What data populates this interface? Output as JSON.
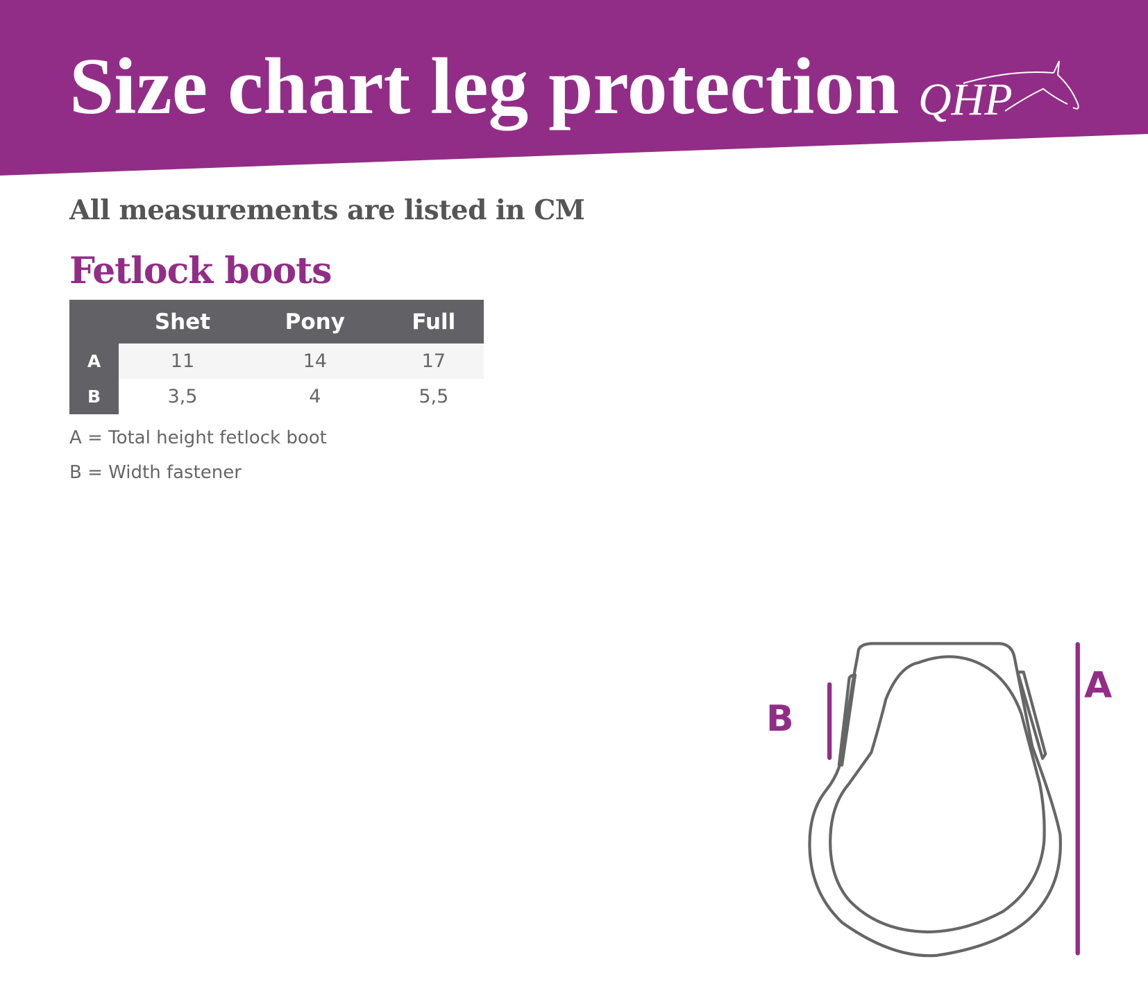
{
  "header": {
    "title": "Size chart leg protection",
    "logo_text": "QHP",
    "background": "#922d87"
  },
  "subtitle": "All measurements are listed in CM",
  "section_title": "Fetlock boots",
  "table": {
    "columns": [
      "",
      "Shet",
      "Pony",
      "Full"
    ],
    "rows": [
      {
        "label": "A",
        "values": [
          "11",
          "14",
          "17"
        ]
      },
      {
        "label": "B",
        "values": [
          "3,5",
          "4",
          "5,5"
        ]
      }
    ]
  },
  "legend": [
    "A = Total height fetlock boot",
    "B = Width fastener"
  ],
  "diagram": {
    "label_a": "A",
    "label_b": "B",
    "accent": "#922d87",
    "outline": "#666666"
  }
}
